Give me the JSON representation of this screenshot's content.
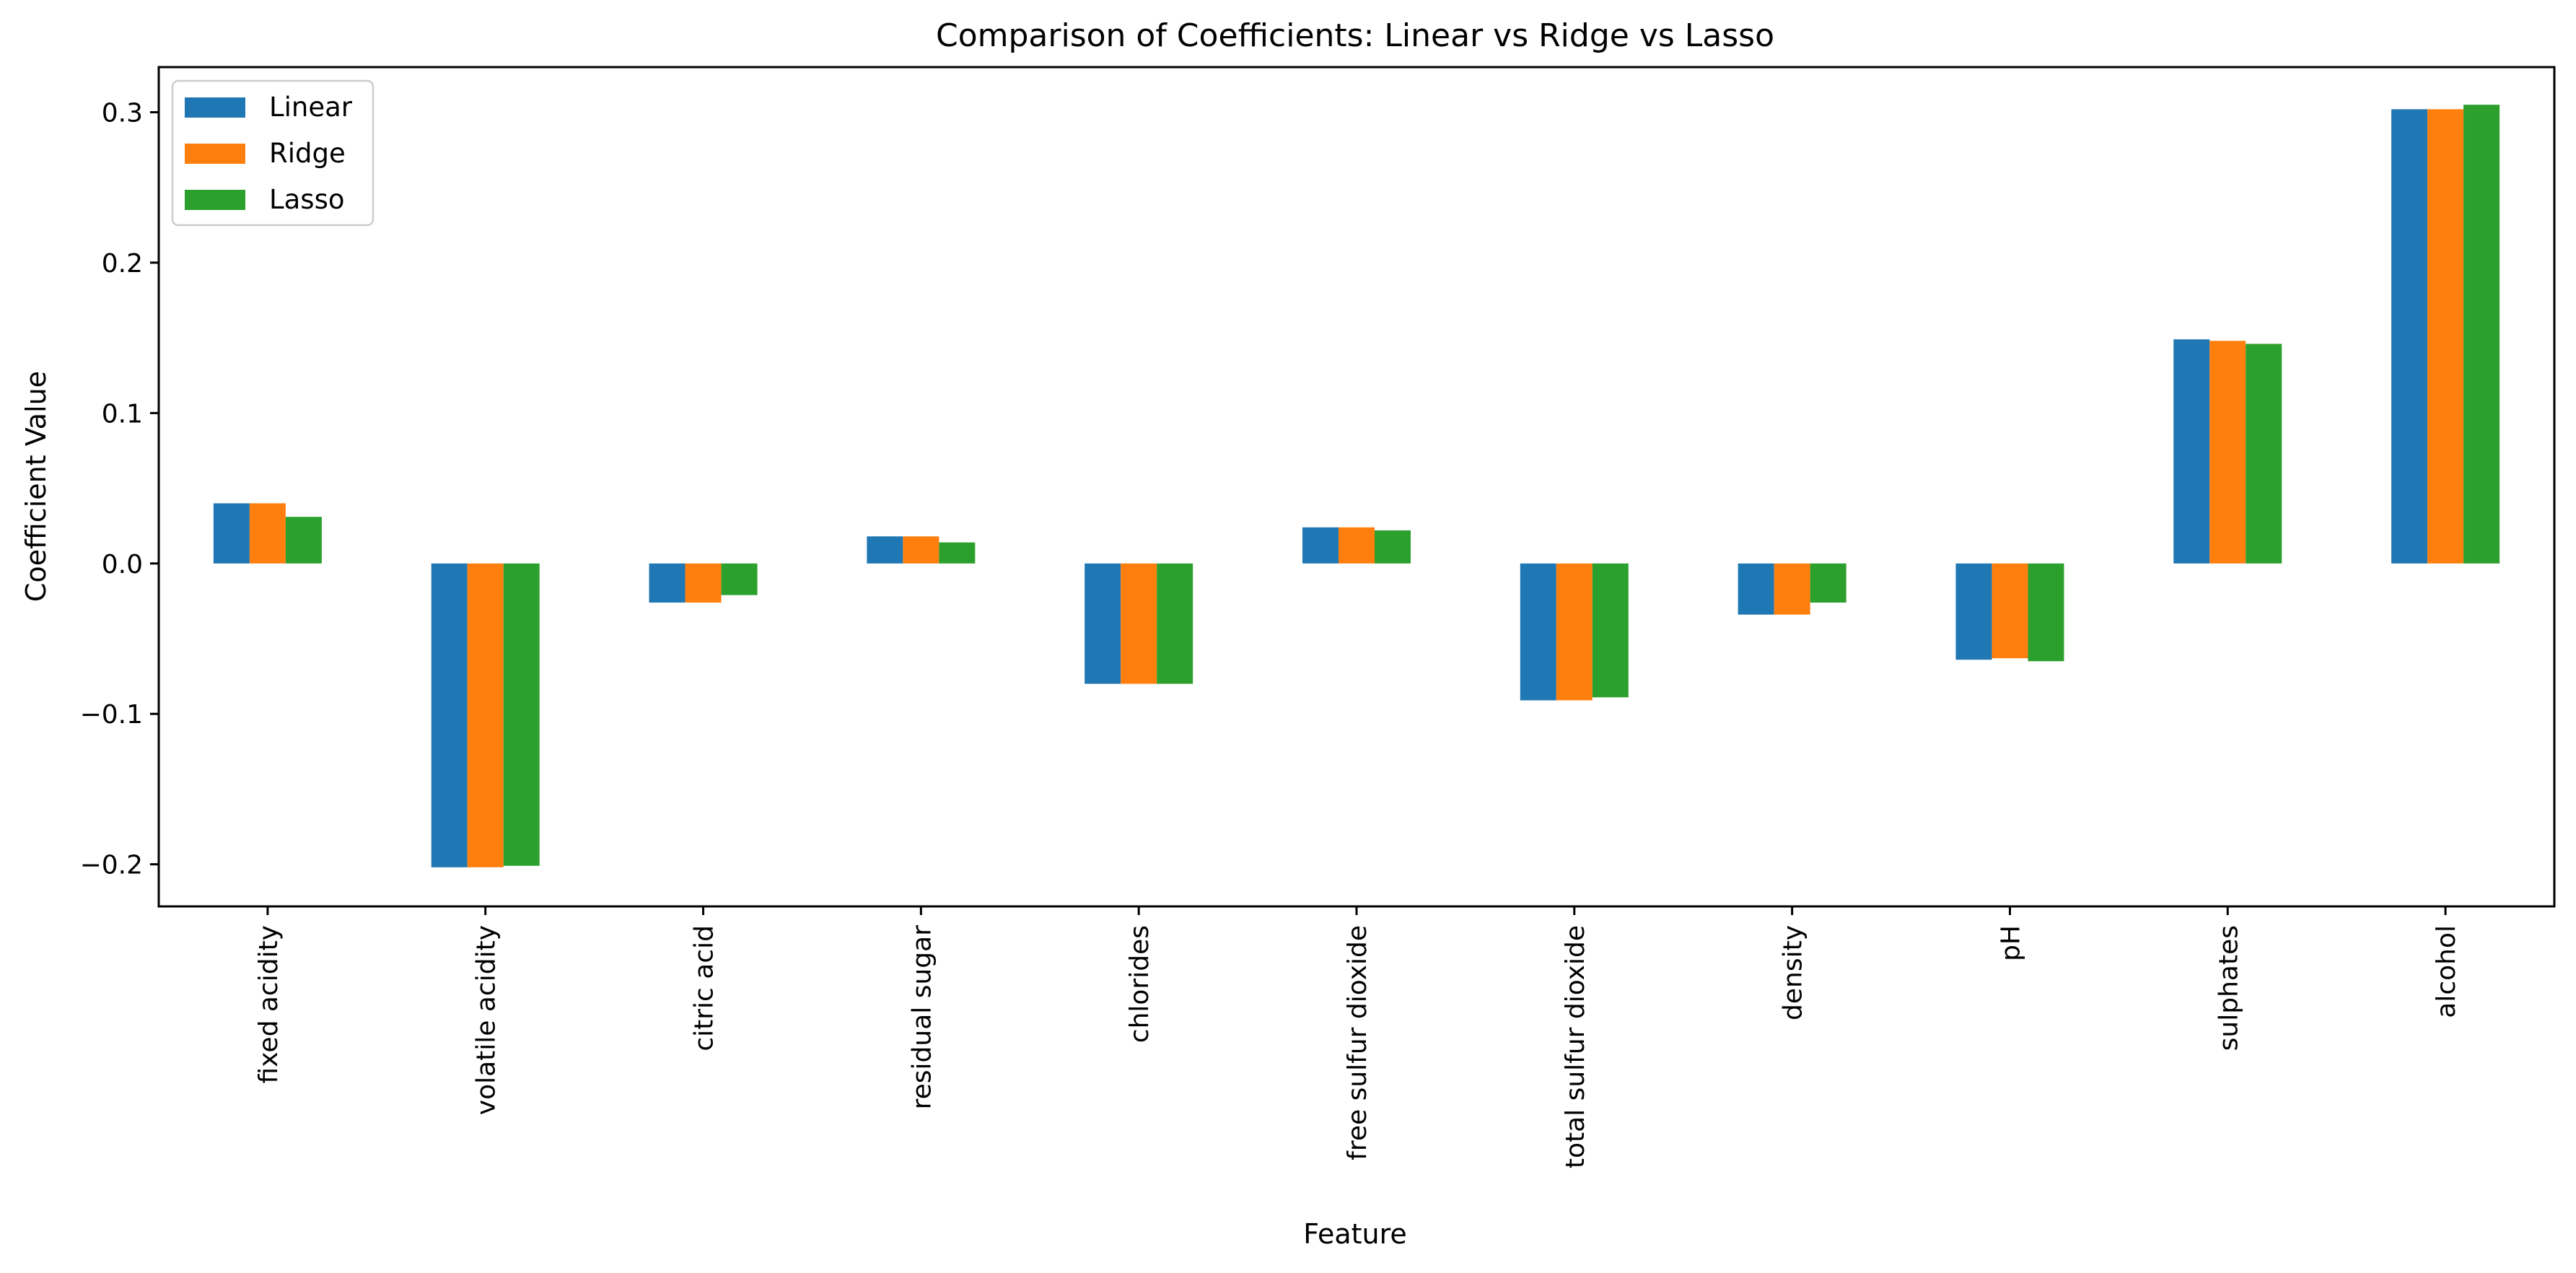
{
  "chart_data": {
    "type": "bar",
    "title": "Comparison of Coefficients: Linear vs Ridge vs Lasso",
    "xlabel": "Feature",
    "ylabel": "Coefficient Value",
    "categories": [
      "fixed acidity",
      "volatile acidity",
      "citric acid",
      "residual sugar",
      "chlorides",
      "free sulfur dioxide",
      "total sulfur dioxide",
      "density",
      "pH",
      "sulphates",
      "alcohol"
    ],
    "series": [
      {
        "name": "Linear",
        "color": "#1f77b4",
        "values": [
          0.04,
          -0.202,
          -0.026,
          0.018,
          -0.08,
          0.024,
          -0.091,
          -0.034,
          -0.064,
          0.149,
          0.302
        ]
      },
      {
        "name": "Ridge",
        "color": "#ff7f0e",
        "values": [
          0.04,
          -0.202,
          -0.026,
          0.018,
          -0.08,
          0.024,
          -0.091,
          -0.034,
          -0.063,
          0.148,
          0.302
        ]
      },
      {
        "name": "Lasso",
        "color": "#2ca02c",
        "values": [
          0.031,
          -0.201,
          -0.021,
          0.014,
          -0.08,
          0.022,
          -0.089,
          -0.026,
          -0.065,
          0.146,
          0.305
        ]
      }
    ],
    "ylim": [
      -0.228,
      0.33
    ],
    "yticks": [
      -0.2,
      -0.1,
      0.0,
      0.1,
      0.2,
      0.3
    ],
    "ytick_labels": [
      "−0.2",
      "−0.1",
      "0.0",
      "0.1",
      "0.2",
      "0.3"
    ],
    "grid": false,
    "legend_position": "upper-left"
  }
}
